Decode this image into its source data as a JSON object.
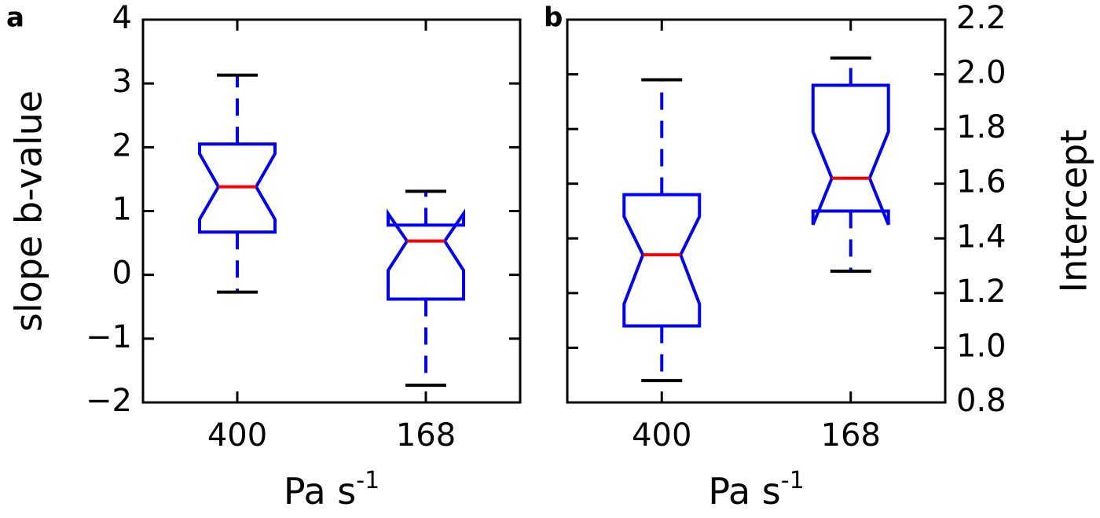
{
  "chart_data": [
    {
      "type": "box",
      "panel_label": "a",
      "ylabel": "slope b-value",
      "yaxis": "left",
      "xlabel": {
        "text": "Pa s",
        "superscript": "-1"
      },
      "categories": [
        "400",
        "168"
      ],
      "box_color": "#0000ff",
      "median_color": "#ff0000",
      "cap_color": "#000000",
      "ylim": [
        -2,
        4
      ],
      "yticks": [
        {
          "value": -2,
          "label": "−2"
        },
        {
          "value": -1,
          "label": "−1"
        },
        0,
        1,
        2,
        3,
        4
      ],
      "boxes": [
        {
          "whislo": -0.27,
          "q1": 0.67,
          "notch_low": 0.87,
          "med": 1.38,
          "notch_high": 1.9,
          "q3": 2.05,
          "whishi": 3.13
        },
        {
          "whislo": -1.73,
          "q1": -0.38,
          "notch_low": 0.07,
          "med": 0.53,
          "notch_high": 0.96,
          "q3": 0.78,
          "whishi": 1.31
        }
      ]
    },
    {
      "type": "box",
      "panel_label": "b",
      "ylabel": "Intercept",
      "yaxis": "right",
      "xlabel": {
        "text": "Pa s",
        "superscript": "-1"
      },
      "categories": [
        "400",
        "168"
      ],
      "box_color": "#0000ff",
      "median_color": "#ff0000",
      "cap_color": "#000000",
      "ylim": [
        0.8,
        2.2
      ],
      "yticks": [
        0.8,
        {
          "value": 1.0,
          "label": "1.0"
        },
        1.2,
        1.4,
        1.6,
        1.8,
        {
          "value": 2.0,
          "label": "2.0"
        },
        2.2
      ],
      "boxes": [
        {
          "whislo": 0.88,
          "q1": 1.08,
          "notch_low": 1.16,
          "med": 1.34,
          "notch_high": 1.48,
          "q3": 1.56,
          "whishi": 1.98
        },
        {
          "whislo": 1.28,
          "q1": 1.5,
          "notch_low": 1.45,
          "med": 1.62,
          "notch_high": 1.79,
          "q3": 1.96,
          "whishi": 2.06
        }
      ]
    }
  ]
}
